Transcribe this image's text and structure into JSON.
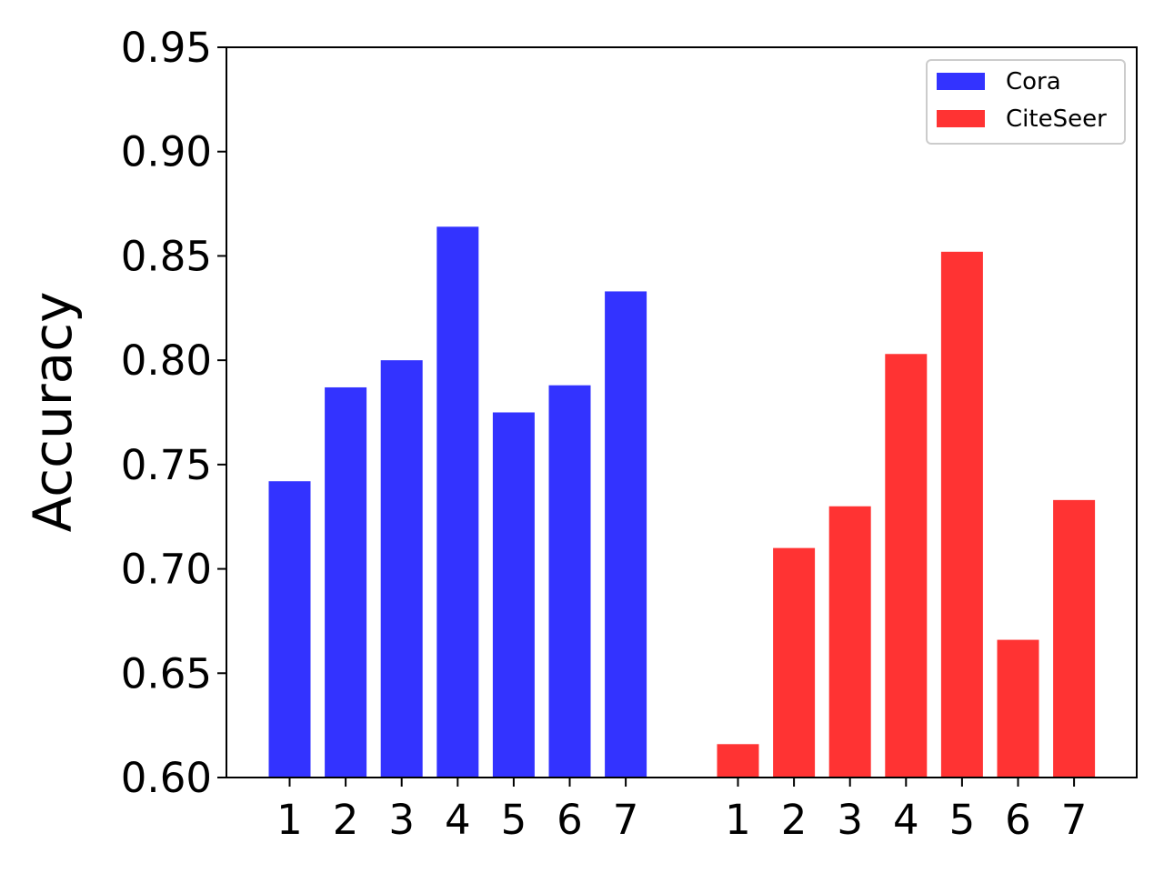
{
  "chart_data": {
    "type": "bar",
    "title": "",
    "xlabel": "",
    "ylabel": "Accuracy",
    "ylim": [
      0.6,
      0.95
    ],
    "yticks": [
      "0.60",
      "0.65",
      "0.70",
      "0.75",
      "0.80",
      "0.85",
      "0.90",
      "0.95"
    ],
    "grid": false,
    "legend_position": "top-right",
    "groups": [
      {
        "name": "Cora",
        "color": "#3333ff",
        "categories": [
          "1",
          "2",
          "3",
          "4",
          "5",
          "6",
          "7"
        ],
        "values": [
          0.742,
          0.787,
          0.8,
          0.864,
          0.775,
          0.788,
          0.833
        ]
      },
      {
        "name": "CiteSeer",
        "color": "#ff3333",
        "categories": [
          "1",
          "2",
          "3",
          "4",
          "5",
          "6",
          "7"
        ],
        "values": [
          0.616,
          0.71,
          0.73,
          0.803,
          0.852,
          0.666,
          0.733
        ]
      }
    ]
  }
}
